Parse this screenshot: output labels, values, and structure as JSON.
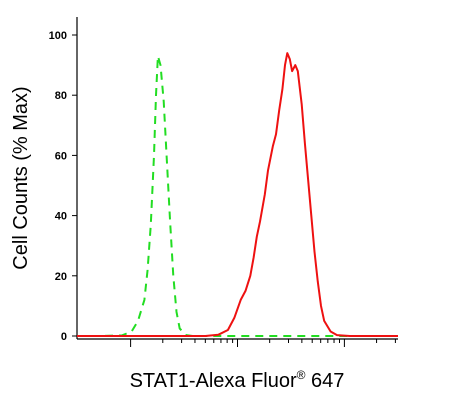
{
  "chart_data": {
    "type": "line",
    "title": "",
    "ylabel": "Cell Counts (% Max)",
    "xlabel": {
      "main": "STAT1-Alexa Fluor",
      "superscript": "®",
      "suffix": " 647"
    },
    "y_ticks": [
      "0",
      "20",
      "40",
      "60",
      "80",
      "100"
    ],
    "ylim": [
      0,
      100
    ],
    "xlim": [
      0,
      100
    ],
    "x_scale": "log",
    "grid": false,
    "legend": "none",
    "series": [
      {
        "style": "dashed",
        "color": "#22dd22",
        "x": [
          0,
          8,
          14,
          17,
          19,
          21,
          22,
          23,
          24,
          24.6,
          25.2,
          26,
          27,
          28,
          29,
          30,
          31,
          32,
          34,
          36,
          40,
          50,
          100
        ],
        "y": [
          0,
          0,
          0.2,
          1.5,
          5,
          12,
          22,
          37,
          60,
          80,
          93,
          90,
          78,
          58,
          38,
          20,
          8,
          2.5,
          0.3,
          0,
          0,
          0,
          0
        ]
      },
      {
        "style": "solid",
        "color": "#ee1111",
        "x": [
          0,
          15,
          30,
          40,
          44,
          47,
          49,
          51,
          52.5,
          54,
          55,
          56,
          57,
          58.5,
          59.5,
          61,
          62,
          63,
          64,
          64.8,
          65.5,
          66.3,
          67,
          68,
          68.8,
          70,
          71,
          72,
          73,
          74,
          75,
          76,
          77,
          79,
          81,
          85,
          100
        ],
        "y": [
          0,
          0,
          0,
          0,
          0.4,
          2,
          6,
          12,
          15,
          20,
          26,
          33,
          38,
          47,
          55,
          63,
          67,
          75,
          82,
          90,
          94,
          92,
          88,
          90,
          88,
          77,
          64,
          52,
          40,
          28,
          18,
          10,
          5,
          1.5,
          0.3,
          0,
          0
        ]
      }
    ]
  }
}
